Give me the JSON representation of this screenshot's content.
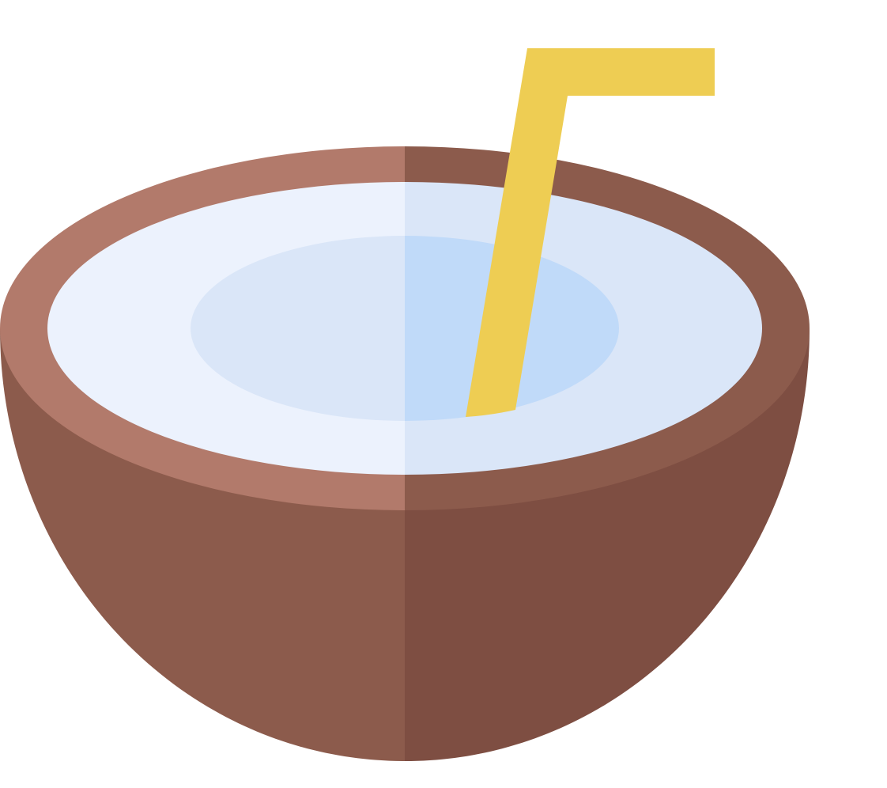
{
  "illustration": {
    "icon": "coconut-drink-icon",
    "parts": [
      "coconut-shell",
      "coconut-rim",
      "coconut-water",
      "drinking-straw"
    ]
  },
  "colors": {
    "background": "#ffffff",
    "shell_left": "#8c5b4c",
    "shell_right": "#7e4e42",
    "rim_left": "#b27a6b",
    "rim_right": "#8c5b4c",
    "flesh_left": "#ecf2fd",
    "flesh_right": "#dae6f8",
    "water_left": "#dae6f8",
    "water_right": "#c0daf9",
    "straw": "#eecd53"
  }
}
